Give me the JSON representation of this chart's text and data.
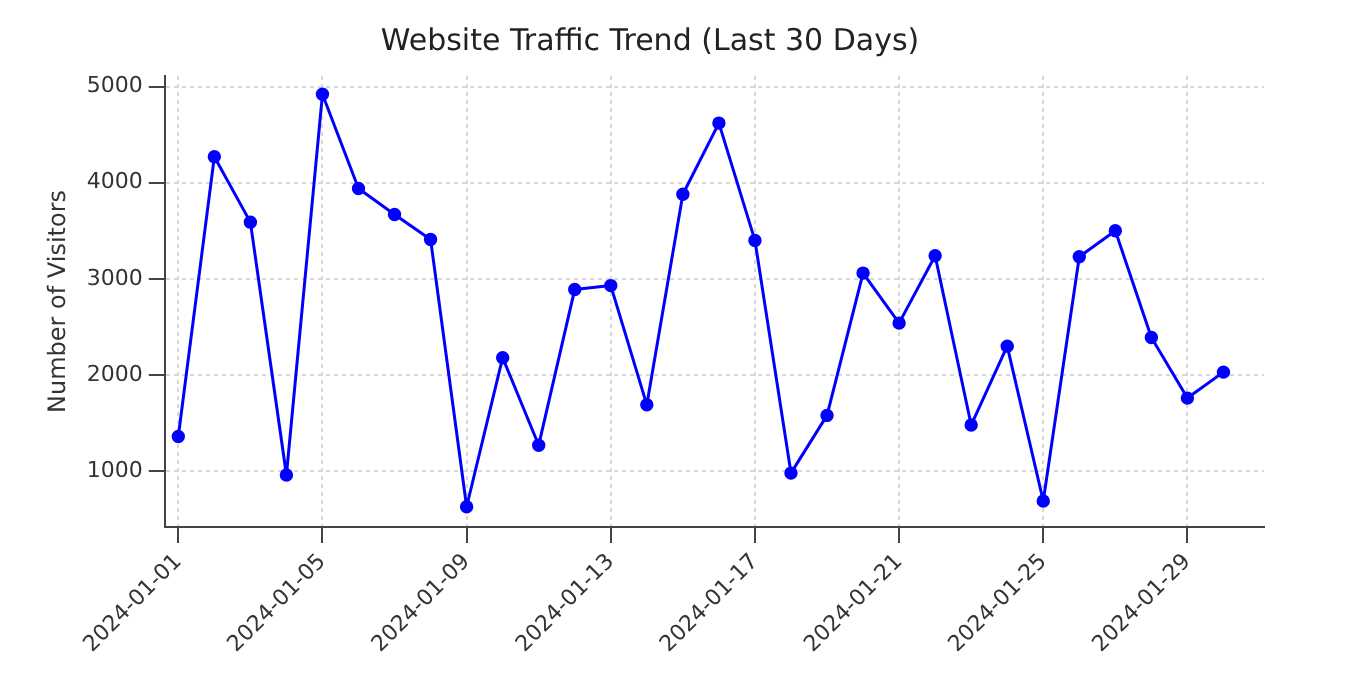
{
  "chart_data": {
    "type": "line",
    "title": "Website Traffic Trend (Last 30 Days)",
    "ylabel": "Number of Visitors",
    "x": [
      "2024-01-01",
      "2024-01-02",
      "2024-01-03",
      "2024-01-04",
      "2024-01-05",
      "2024-01-06",
      "2024-01-07",
      "2024-01-08",
      "2024-01-09",
      "2024-01-10",
      "2024-01-11",
      "2024-01-12",
      "2024-01-13",
      "2024-01-14",
      "2024-01-15",
      "2024-01-16",
      "2024-01-17",
      "2024-01-18",
      "2024-01-19",
      "2024-01-20",
      "2024-01-21",
      "2024-01-22",
      "2024-01-23",
      "2024-01-24",
      "2024-01-25",
      "2024-01-26",
      "2024-01-27",
      "2024-01-28",
      "2024-01-29",
      "2024-01-30"
    ],
    "series": [
      {
        "color": "#0000ff",
        "values": [
          1360,
          4270,
          3590,
          960,
          4920,
          3940,
          3670,
          3410,
          630,
          2180,
          1270,
          2890,
          2930,
          1690,
          3880,
          4620,
          3400,
          980,
          1580,
          3060,
          2540,
          3240,
          1480,
          2300,
          690,
          3230,
          3500,
          2390,
          1760,
          2030
        ]
      }
    ],
    "xlim": [
      "2023-12-31T15:00",
      "2024-01-31T03:00"
    ],
    "xticks": [
      "2024-01-01",
      "2024-01-05",
      "2024-01-09",
      "2024-01-13",
      "2024-01-17",
      "2024-01-21",
      "2024-01-25",
      "2024-01-29"
    ],
    "ylim": [
      420,
      5110
    ],
    "yticks": [
      1000,
      2000,
      3000,
      4000,
      5000
    ],
    "grid": true,
    "legend": false,
    "marker": "circle",
    "line_style": "solid"
  }
}
